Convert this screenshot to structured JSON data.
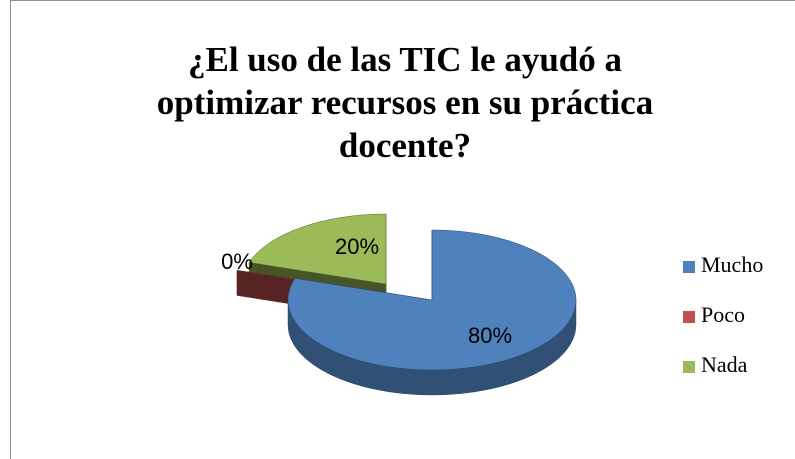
{
  "chart_data": {
    "type": "pie",
    "title": "¿El uso de las TIC le ayudó a optimizar recursos en su práctica docente?",
    "categories": [
      "Mucho",
      "Poco",
      "Nada"
    ],
    "values": [
      80,
      0,
      20
    ],
    "value_labels": [
      "80%",
      "0%",
      "20%"
    ],
    "colors": [
      "#4f81bd",
      "#c0504d",
      "#9bbb59"
    ],
    "legend": "right"
  }
}
